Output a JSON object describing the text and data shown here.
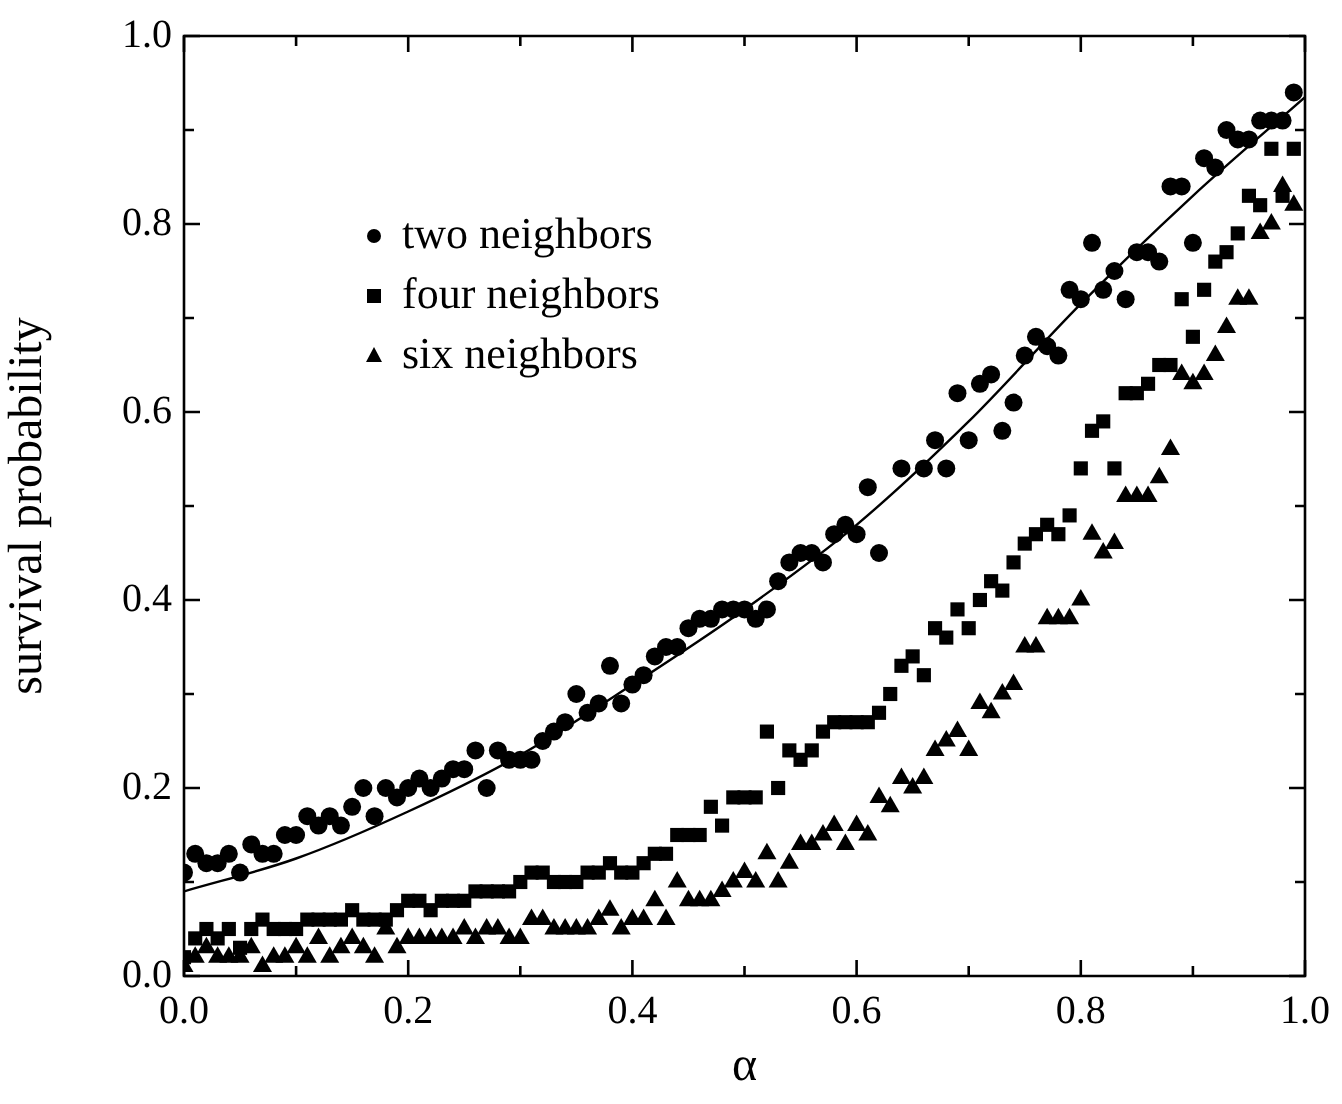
{
  "chart_data": {
    "type": "scatter",
    "xlabel": "α",
    "ylabel": "survival probability",
    "xlim": [
      0,
      1
    ],
    "ylim": [
      0,
      1
    ],
    "xticks": [
      {
        "value": 0,
        "label": "0.0"
      },
      {
        "value": 0.1,
        "label": null
      },
      0.2,
      {
        "value": 0.3,
        "label": null
      },
      0.4,
      {
        "value": 0.5,
        "label": null
      },
      0.6,
      {
        "value": 0.7,
        "label": null
      },
      0.8,
      {
        "value": 0.9,
        "label": null
      },
      {
        "value": 1,
        "label": "1.0"
      }
    ],
    "yticks": [
      {
        "value": 0,
        "label": "0.0"
      },
      {
        "value": 0.1,
        "label": null
      },
      0.2,
      {
        "value": 0.3,
        "label": null
      },
      0.4,
      {
        "value": 0.5,
        "label": null
      },
      0.6,
      {
        "value": 0.7,
        "label": null
      },
      0.8,
      {
        "value": 0.9,
        "label": null
      },
      {
        "value": 1,
        "label": "1.0"
      }
    ],
    "grid": false,
    "legend": "top left",
    "series": [
      {
        "name": "two neighbors",
        "color": "#000000",
        "marker": "circle",
        "x": [
          0,
          0.01,
          0.02,
          0.03,
          0.04,
          0.05,
          0.06,
          0.07,
          0.08,
          0.09,
          0.1,
          0.11,
          0.12,
          0.13,
          0.14,
          0.15,
          0.16,
          0.17,
          0.18,
          0.19,
          0.2,
          0.21,
          0.22,
          0.23,
          0.24,
          0.25,
          0.26,
          0.27,
          0.28,
          0.29,
          0.3,
          0.31,
          0.32,
          0.33,
          0.34,
          0.35,
          0.36,
          0.37,
          0.38,
          0.39,
          0.4,
          0.41,
          0.42,
          0.43,
          0.44,
          0.45,
          0.46,
          0.47,
          0.48,
          0.49,
          0.5,
          0.51,
          0.52,
          0.53,
          0.54,
          0.55,
          0.56,
          0.57,
          0.58,
          0.59,
          0.6,
          0.61,
          0.62,
          0.64,
          0.66,
          0.67,
          0.68,
          0.69,
          0.7,
          0.71,
          0.72,
          0.73,
          0.74,
          0.75,
          0.76,
          0.77,
          0.78,
          0.79,
          0.8,
          0.81,
          0.82,
          0.83,
          0.84,
          0.85,
          0.86,
          0.87,
          0.88,
          0.89,
          0.9,
          0.91,
          0.92,
          0.93,
          0.94,
          0.95,
          0.96,
          0.97,
          0.98,
          0.99
        ],
        "values": [
          0.11,
          0.13,
          0.12,
          0.12,
          0.13,
          0.11,
          0.14,
          0.13,
          0.13,
          0.15,
          0.15,
          0.17,
          0.16,
          0.17,
          0.16,
          0.18,
          0.2,
          0.17,
          0.2,
          0.19,
          0.2,
          0.21,
          0.2,
          0.21,
          0.22,
          0.22,
          0.24,
          0.2,
          0.24,
          0.23,
          0.23,
          0.23,
          0.25,
          0.26,
          0.27,
          0.3,
          0.28,
          0.29,
          0.33,
          0.29,
          0.31,
          0.32,
          0.34,
          0.35,
          0.35,
          0.37,
          0.38,
          0.38,
          0.39,
          0.39,
          0.39,
          0.38,
          0.39,
          0.42,
          0.44,
          0.45,
          0.45,
          0.44,
          0.47,
          0.48,
          0.47,
          0.52,
          0.45,
          0.54,
          0.54,
          0.57,
          0.54,
          0.62,
          0.57,
          0.63,
          0.64,
          0.58,
          0.61,
          0.66,
          0.68,
          0.67,
          0.66,
          0.73,
          0.72,
          0.78,
          0.73,
          0.75,
          0.72,
          0.77,
          0.77,
          0.76,
          0.84,
          0.84,
          0.78,
          0.87,
          0.86,
          0.9,
          0.89,
          0.89,
          0.91,
          0.91,
          0.91,
          0.94
        ]
      },
      {
        "name": "four neighbors",
        "color": "#000000",
        "marker": "square",
        "x": [
          0,
          0.01,
          0.02,
          0.03,
          0.04,
          0.05,
          0.06,
          0.07,
          0.08,
          0.09,
          0.1,
          0.11,
          0.12,
          0.13,
          0.14,
          0.15,
          0.16,
          0.17,
          0.18,
          0.19,
          0.2,
          0.21,
          0.22,
          0.23,
          0.24,
          0.25,
          0.26,
          0.27,
          0.28,
          0.29,
          0.3,
          0.31,
          0.32,
          0.33,
          0.34,
          0.35,
          0.36,
          0.37,
          0.38,
          0.39,
          0.4,
          0.41,
          0.42,
          0.43,
          0.44,
          0.45,
          0.46,
          0.47,
          0.48,
          0.49,
          0.5,
          0.51,
          0.52,
          0.53,
          0.54,
          0.55,
          0.56,
          0.57,
          0.58,
          0.59,
          0.6,
          0.61,
          0.62,
          0.63,
          0.64,
          0.65,
          0.66,
          0.67,
          0.68,
          0.69,
          0.7,
          0.71,
          0.72,
          0.73,
          0.74,
          0.75,
          0.76,
          0.77,
          0.78,
          0.79,
          0.8,
          0.81,
          0.82,
          0.83,
          0.84,
          0.85,
          0.86,
          0.87,
          0.88,
          0.89,
          0.9,
          0.91,
          0.92,
          0.93,
          0.94,
          0.95,
          0.96,
          0.97,
          0.98,
          0.99
        ],
        "values": [
          0.02,
          0.04,
          0.05,
          0.04,
          0.05,
          0.03,
          0.05,
          0.06,
          0.05,
          0.05,
          0.05,
          0.06,
          0.06,
          0.06,
          0.06,
          0.07,
          0.06,
          0.06,
          0.06,
          0.07,
          0.08,
          0.08,
          0.07,
          0.08,
          0.08,
          0.08,
          0.09,
          0.09,
          0.09,
          0.09,
          0.1,
          0.11,
          0.11,
          0.1,
          0.1,
          0.1,
          0.11,
          0.11,
          0.12,
          0.11,
          0.11,
          0.12,
          0.13,
          0.13,
          0.15,
          0.15,
          0.15,
          0.18,
          0.16,
          0.19,
          0.19,
          0.19,
          0.26,
          0.2,
          0.24,
          0.23,
          0.24,
          0.26,
          0.27,
          0.27,
          0.27,
          0.27,
          0.28,
          0.3,
          0.33,
          0.34,
          0.32,
          0.37,
          0.36,
          0.39,
          0.37,
          0.4,
          0.42,
          0.41,
          0.44,
          0.46,
          0.47,
          0.48,
          0.47,
          0.49,
          0.54,
          0.58,
          0.59,
          0.54,
          0.62,
          0.62,
          0.63,
          0.65,
          0.65,
          0.72,
          0.68,
          0.73,
          0.76,
          0.77,
          0.79,
          0.83,
          0.82,
          0.88,
          0.83,
          0.88
        ]
      },
      {
        "name": "six neighbors",
        "color": "#000000",
        "marker": "triangle",
        "x": [
          0,
          0.01,
          0.02,
          0.03,
          0.04,
          0.05,
          0.06,
          0.07,
          0.08,
          0.09,
          0.1,
          0.11,
          0.12,
          0.13,
          0.14,
          0.15,
          0.16,
          0.17,
          0.18,
          0.19,
          0.2,
          0.21,
          0.22,
          0.23,
          0.24,
          0.25,
          0.26,
          0.27,
          0.28,
          0.29,
          0.3,
          0.31,
          0.32,
          0.33,
          0.34,
          0.35,
          0.36,
          0.37,
          0.38,
          0.39,
          0.4,
          0.41,
          0.42,
          0.43,
          0.44,
          0.45,
          0.46,
          0.47,
          0.48,
          0.49,
          0.5,
          0.51,
          0.52,
          0.53,
          0.54,
          0.55,
          0.56,
          0.57,
          0.58,
          0.59,
          0.6,
          0.61,
          0.62,
          0.63,
          0.64,
          0.65,
          0.66,
          0.67,
          0.68,
          0.69,
          0.7,
          0.71,
          0.72,
          0.73,
          0.74,
          0.75,
          0.76,
          0.77,
          0.78,
          0.79,
          0.8,
          0.81,
          0.82,
          0.83,
          0.84,
          0.85,
          0.86,
          0.87,
          0.88,
          0.89,
          0.9,
          0.91,
          0.92,
          0.93,
          0.94,
          0.95,
          0.96,
          0.97,
          0.98,
          0.99
        ],
        "values": [
          0.01,
          0.02,
          0.03,
          0.02,
          0.02,
          0.02,
          0.03,
          0.01,
          0.02,
          0.02,
          0.03,
          0.02,
          0.04,
          0.02,
          0.03,
          0.04,
          0.03,
          0.02,
          0.05,
          0.03,
          0.04,
          0.04,
          0.04,
          0.04,
          0.04,
          0.05,
          0.04,
          0.05,
          0.05,
          0.04,
          0.04,
          0.06,
          0.06,
          0.05,
          0.05,
          0.05,
          0.05,
          0.06,
          0.07,
          0.05,
          0.06,
          0.06,
          0.08,
          0.06,
          0.1,
          0.08,
          0.08,
          0.08,
          0.09,
          0.1,
          0.11,
          0.1,
          0.13,
          0.1,
          0.12,
          0.14,
          0.14,
          0.15,
          0.16,
          0.14,
          0.16,
          0.15,
          0.19,
          0.18,
          0.21,
          0.2,
          0.21,
          0.24,
          0.25,
          0.26,
          0.24,
          0.29,
          0.28,
          0.3,
          0.31,
          0.35,
          0.35,
          0.38,
          0.38,
          0.38,
          0.4,
          0.47,
          0.45,
          0.46,
          0.51,
          0.51,
          0.51,
          0.53,
          0.56,
          0.64,
          0.63,
          0.64,
          0.66,
          0.69,
          0.72,
          0.72,
          0.79,
          0.8,
          0.84,
          0.82
        ]
      },
      {
        "type": "line",
        "color": "#000000",
        "marker": "none",
        "line_style": "solid",
        "x": [
          0,
          0.1,
          0.2,
          0.3,
          0.4,
          0.5,
          0.6,
          0.7,
          0.8,
          0.9,
          1
        ],
        "values": [
          0.09,
          0.125,
          0.175,
          0.235,
          0.31,
          0.39,
          0.48,
          0.59,
          0.715,
          0.83,
          0.935
        ]
      }
    ]
  }
}
